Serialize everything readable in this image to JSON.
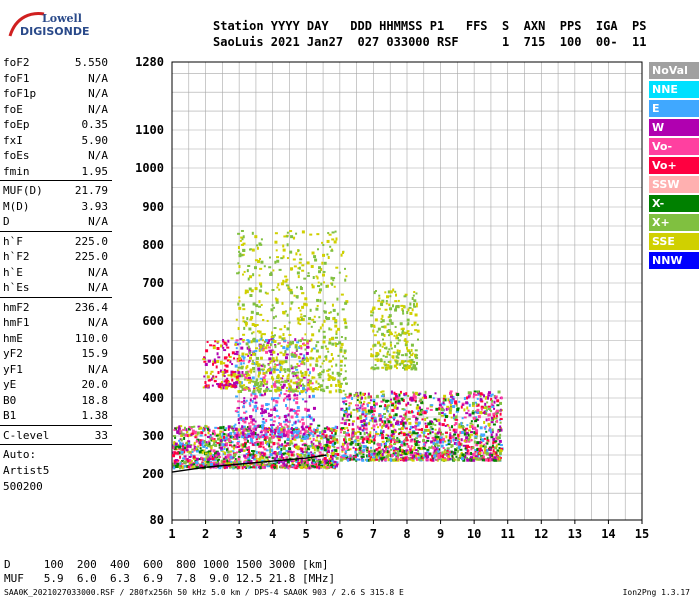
{
  "logo": {
    "line1": "Lowell",
    "line2": "DIGISONDE"
  },
  "header": {
    "line1": "Station YYYY DAY   DDD HHMMSS P1   FFS  S  AXN  PPS  IGA  PS",
    "line2": "SaoLuis 2021 Jan27  027 033000 RSF      1  715  100  00-  11"
  },
  "params": [
    {
      "group": [
        {
          "k": "foF2",
          "v": "5.550"
        },
        {
          "k": "foF1",
          "v": "N/A"
        },
        {
          "k": "foF1p",
          "v": "N/A"
        },
        {
          "k": "foE",
          "v": "N/A"
        },
        {
          "k": "foEp",
          "v": "0.35"
        },
        {
          "k": "fxI",
          "v": "5.90"
        },
        {
          "k": "foEs",
          "v": "N/A"
        },
        {
          "k": "fmin",
          "v": "1.95"
        }
      ]
    },
    {
      "group": [
        {
          "k": "MUF(D)",
          "v": "21.79"
        },
        {
          "k": "M(D)",
          "v": "3.93"
        },
        {
          "k": "D",
          "v": "N/A"
        }
      ]
    },
    {
      "group": [
        {
          "k": "h`F",
          "v": "225.0"
        },
        {
          "k": "h`F2",
          "v": "225.0"
        },
        {
          "k": "h`E",
          "v": "N/A"
        },
        {
          "k": "h`Es",
          "v": "N/A"
        }
      ]
    },
    {
      "group": [
        {
          "k": "hmF2",
          "v": "236.4"
        },
        {
          "k": "hmF1",
          "v": "N/A"
        },
        {
          "k": "hmE",
          "v": "110.0"
        },
        {
          "k": "yF2",
          "v": "15.9"
        },
        {
          "k": "yF1",
          "v": "N/A"
        },
        {
          "k": "yE",
          "v": "20.0"
        },
        {
          "k": "B0",
          "v": "18.8"
        },
        {
          "k": "B1",
          "v": "1.38"
        }
      ]
    },
    {
      "group": [
        {
          "k": "C-level",
          "v": "33"
        }
      ]
    }
  ],
  "auto": [
    "Auto:",
    "Artist5",
    "500200"
  ],
  "legend": [
    {
      "label": "NoVal",
      "color": "#a0a0a0"
    },
    {
      "label": "NNE",
      "color": "#00e0ff"
    },
    {
      "label": "E",
      "color": "#40a8ff"
    },
    {
      "label": "W",
      "color": "#b000b0"
    },
    {
      "label": "Vo-",
      "color": "#ff40a0"
    },
    {
      "label": "Vo+",
      "color": "#ff0040"
    },
    {
      "label": "SSW",
      "color": "#ffb0b0"
    },
    {
      "label": "X-",
      "color": "#008000"
    },
    {
      "label": "X+",
      "color": "#80c040"
    },
    {
      "label": "SSE",
      "color": "#d0d000"
    },
    {
      "label": "NNW",
      "color": "#0000ff"
    }
  ],
  "footer": {
    "line1": "D     100  200  400  600  800 1000 1500 3000 [km]",
    "line2": "MUF   5.9  6.0  6.3  6.9  7.8  9.0 12.5 21.8 [MHz]"
  },
  "bottom": {
    "left": "SAA0K_2021027033000.RSF / 280fx256h 50 kHz 5.0 km / DPS-4 SAA0K 903 / 2.6 S 315.8 E",
    "right": "Ion2Png 1.3.17"
  },
  "chart_data": {
    "type": "scatter",
    "title": "",
    "xlabel": "",
    "ylabel": "",
    "xlim": [
      1,
      15
    ],
    "ylim": [
      80,
      1280
    ],
    "x_ticks": [
      1,
      2,
      3,
      4,
      5,
      6,
      7,
      8,
      9,
      10,
      11,
      12,
      13,
      14,
      15
    ],
    "y_ticks": [
      80,
      200,
      300,
      400,
      500,
      600,
      700,
      800,
      900,
      1000,
      1100,
      1280
    ],
    "grid": true,
    "legend_placement": "right",
    "trace_curve": [
      [
        1.0,
        205
      ],
      [
        2.0,
        218
      ],
      [
        3.0,
        226
      ],
      [
        4.0,
        234
      ],
      [
        5.0,
        242
      ],
      [
        5.6,
        250
      ]
    ],
    "clusters": [
      {
        "name": "F-trace",
        "x": [
          1.0,
          5.9
        ],
        "y": [
          220,
          330
        ],
        "colors": [
          "#b000b0",
          "#ff40a0",
          "#ff0040",
          "#80c040",
          "#40a8ff",
          "#d0d000",
          "#008000"
        ],
        "n": 1400
      },
      {
        "name": "F-trace-2",
        "x": [
          6.0,
          10.8
        ],
        "y": [
          240,
          420
        ],
        "colors": [
          "#b000b0",
          "#ff40a0",
          "#ff0040",
          "#80c040",
          "#40a8ff",
          "#d0d000",
          "#008000"
        ],
        "n": 1500
      },
      {
        "name": "upper-W",
        "x": [
          2.8,
          5.2
        ],
        "y": [
          300,
          560
        ],
        "colors": [
          "#b000b0",
          "#ff40a0",
          "#40a8ff"
        ],
        "n": 500
      },
      {
        "name": "SSE-cloud",
        "x": [
          2.9,
          6.2
        ],
        "y": [
          420,
          840
        ],
        "colors": [
          "#d0d000",
          "#80c040"
        ],
        "n": 700
      },
      {
        "name": "SSE-cloud-2",
        "x": [
          6.9,
          8.3
        ],
        "y": [
          480,
          690
        ],
        "colors": [
          "#d0d000",
          "#80c040"
        ],
        "n": 260
      },
      {
        "name": "low-edge",
        "x": [
          1.9,
          3.0
        ],
        "y": [
          430,
          560
        ],
        "colors": [
          "#d0d000",
          "#ff0040",
          "#b000b0"
        ],
        "n": 150
      }
    ]
  }
}
